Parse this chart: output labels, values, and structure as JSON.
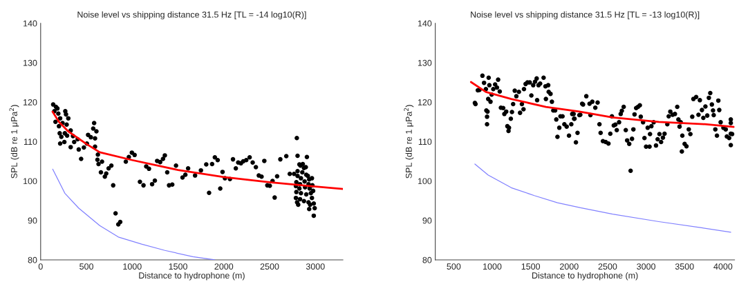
{
  "chart_data": [
    {
      "type": "scatter",
      "title": "Noise level vs shipping distance 31.5 Hz [TL = -14 log10(R)]",
      "xlabel": "Distance to hydrophone (m)",
      "ylabel": "SPL (dB re 1 μPa$^{2}$)",
      "xlim": [
        0,
        3300
      ],
      "xticks": [
        0,
        500,
        1000,
        1500,
        2000,
        2500,
        3000
      ],
      "ylim": [
        80,
        140
      ],
      "yticks": [
        80,
        90,
        100,
        110,
        120,
        130,
        140
      ],
      "grid": false,
      "legend": false,
      "series": [
        {
          "marker": "circle",
          "color": "#000000",
          "x": [
            137,
            167,
            183,
            150,
            193,
            269,
            277,
            302,
            213,
            162,
            239,
            284,
            200,
            328,
            264,
            208,
            226,
            289,
            353,
            404,
            213,
            259,
            366,
            328,
            416,
            442,
            472,
            505,
            518,
            548,
            584,
            574,
            609,
            594,
            594,
            625,
            620,
            632,
            670,
            658,
            701,
            716,
            742,
            772,
            792,
            818,
            848,
            869,
            930,
            963,
            996,
            1026,
            1084,
            1123,
            1153,
            1183,
            1217,
            1247,
            1272,
            1305,
            1336,
            1356,
            1382,
            1402,
            1437,
            1478,
            1549,
            1580,
            1610,
            1686,
            1750,
            1808,
            1839,
            1872,
            1902,
            1933,
            1961,
            1986,
            2012,
            2067,
            2100,
            2131,
            2157,
            2187,
            2212,
            2245,
            2282,
            2315,
            2350,
            2382,
            2412,
            2442,
            2475,
            2502,
            2532,
            2555,
            2582,
            2617,
            2682,
            2720,
            2767,
            2797,
            2805,
            2805,
            2805,
            2812,
            2800,
            2787,
            2792,
            2787,
            2792,
            2825,
            2837,
            2862,
            2875,
            2857,
            2842,
            2832,
            2825,
            2842,
            2832,
            2875,
            2907,
            2895,
            2900,
            2882,
            2887,
            2900,
            2917,
            2932,
            2925,
            2937,
            2925,
            2932,
            2942,
            2962,
            2967,
            2975,
            2962,
            2982,
            2992,
            2982,
            2950
          ],
          "values": [
            119.4,
            118.8,
            118.4,
            117.7,
            117.1,
            117.7,
            116.9,
            115.9,
            115.9,
            115.0,
            114.7,
            114.3,
            113.9,
            112.8,
            112.1,
            112.1,
            111.2,
            111.5,
            111.4,
            110.6,
            109.5,
            109.9,
            109.9,
            108.6,
            108.0,
            105.6,
            108.5,
            109.5,
            111.7,
            111.1,
            114.7,
            113.3,
            112.6,
            110.8,
            108.7,
            106.7,
            105.4,
            104.3,
            104.9,
            102.2,
            101.1,
            101.9,
            103.2,
            103.9,
            98.9,
            91.8,
            89.0,
            89.6,
            104.9,
            106.1,
            107.2,
            106.6,
            99.8,
            98.9,
            103.7,
            103.1,
            99.2,
            100.1,
            105.1,
            104.8,
            105.6,
            106.5,
            102.2,
            98.9,
            99.1,
            103.9,
            100.9,
            101.6,
            103.2,
            101.4,
            102.7,
            104.2,
            97.0,
            104.3,
            106.0,
            105.3,
            98.1,
            102.3,
            100.7,
            100.5,
            105.5,
            103.2,
            104.7,
            104.5,
            105.0,
            105.3,
            106.0,
            104.7,
            103.5,
            101.4,
            101.1,
            105.1,
            98.9,
            98.8,
            100.0,
            95.8,
            101.2,
            105.5,
            106.3,
            101.8,
            101.8,
            110.9,
            106.4,
            101.3,
            102.5,
            94.0,
            94.6,
            95.7,
            97.2,
            98.7,
            99.7,
            104.2,
            103.9,
            104.3,
            103.3,
            102.2,
            100.7,
            99.2,
            98.1,
            96.9,
            95.4,
            94.9,
            106.1,
            103.5,
            101.6,
            99.9,
            98.4,
            96.6,
            101.3,
            100.4,
            99.2,
            98.1,
            94.6,
            92.9,
            94.0,
            100.7,
            98.9,
            97.5,
            95.7,
            94.3,
            93.1,
            91.2,
            96.9
          ]
        },
        {
          "type": "line",
          "marker": "none",
          "color": "#ff0000",
          "x": [
            130,
            200,
            300,
            500,
            645,
            1000,
            1500,
            2000,
            2500,
            3000,
            3300
          ],
          "values": [
            117.6,
            115.0,
            112.6,
            109.4,
            107.3,
            105.3,
            102.8,
            101.0,
            99.7,
            98.6,
            98.0
          ]
        },
        {
          "type": "line",
          "marker": "none",
          "color": "#8080ff",
          "x": [
            132,
            264,
            416,
            645,
            848,
            1102,
            1356,
            1661,
            1900
          ],
          "values": [
            103.0,
            96.9,
            93.1,
            88.7,
            85.8,
            84.0,
            82.4,
            80.8,
            80.0
          ]
        }
      ]
    },
    {
      "type": "scatter",
      "title": "Noise level vs shipping distance 31.5 Hz [TL = -13 log10(R)]",
      "xlabel": "Distance to hydrophone (m)",
      "ylabel": "SPL (dB re 1 μPa$^{2}$)",
      "xlim": [
        260,
        4150
      ],
      "xticks": [
        500,
        1000,
        1500,
        2000,
        2500,
        3000,
        3500,
        4000
      ],
      "ylim": [
        80,
        140
      ],
      "yticks": [
        80,
        90,
        100,
        110,
        120,
        130,
        140
      ],
      "grid": false,
      "legend": false,
      "series": [
        {
          "marker": "circle",
          "color": "#000000",
          "x": [
            775,
            783,
            813,
            834,
            873,
            894,
            918,
            924,
            933,
            933,
            939,
            954,
            963,
            948,
            978,
            993,
            1014,
            1038,
            1062,
            1077,
            1098,
            1113,
            1143,
            1158,
            1182,
            1197,
            1212,
            1218,
            1242,
            1257,
            1272,
            1293,
            1314,
            1347,
            1362,
            1386,
            1407,
            1413,
            1434,
            1458,
            1488,
            1509,
            1533,
            1557,
            1578,
            1602,
            1584,
            1623,
            1668,
            1692,
            1728,
            1698,
            1734,
            1758,
            1776,
            1794,
            1818,
            1833,
            1848,
            1872,
            1887,
            1914,
            1938,
            1968,
            1998,
            2028,
            2064,
            2058,
            2088,
            2109,
            2133,
            2040,
            2070,
            2145,
            2169,
            2223,
            2181,
            2265,
            2301,
            2340,
            2370,
            2277,
            2394,
            2409,
            2439,
            2475,
            2511,
            2535,
            2556,
            2580,
            2601,
            2619,
            2649,
            2670,
            2685,
            2709,
            2736,
            2754,
            2781,
            2799,
            2817,
            2835,
            2850,
            2871,
            2895,
            2919,
            2931,
            2961,
            2979,
            3000,
            3021,
            3045,
            3051,
            3069,
            3099,
            3129,
            3150,
            3174,
            3195,
            3219,
            3240,
            3276,
            3294,
            3315,
            3345,
            3375,
            3405,
            3420,
            3435,
            3450,
            3471,
            3465,
            3501,
            3525,
            3555,
            3576,
            3600,
            3615,
            3651,
            3681,
            3699,
            3726,
            3744,
            3771,
            3795,
            3816,
            3834,
            3855,
            3870,
            3879,
            3900,
            3921,
            3939,
            3951,
            3969,
            4005,
            4035,
            4050,
            4080,
            4101,
            4101,
            4101,
            4101,
            4119
          ],
          "values": [
            119.8,
            119.5,
            123.0,
            123.1,
            126.7,
            124.9,
            123.3,
            117.9,
            116.3,
            114.4,
            117.6,
            126.2,
            124.3,
            120.8,
            120.1,
            121.9,
            123.3,
            124.5,
            123.7,
            125.7,
            122.7,
            118.6,
            118.5,
            117.0,
            117.6,
            113.9,
            112.7,
            113.5,
            115.8,
            117.5,
            119.5,
            122.9,
            121.5,
            122.6,
            117.3,
            119.5,
            118.2,
            123.3,
            124.6,
            125.0,
            125.0,
            121.7,
            124.3,
            125.2,
            126.0,
            124.3,
            120.5,
            124.7,
            126.2,
            124.0,
            124.3,
            120.8,
            122.6,
            122.1,
            120.1,
            117.9,
            117.9,
            115.6,
            111.2,
            113.5,
            116.4,
            116.4,
            114.4,
            113.8,
            111.5,
            114.4,
            115.8,
            117.0,
            109.8,
            112.2,
            116.7,
            117.0,
            115.8,
            116.8,
            119.6,
            121.5,
            119.4,
            119.6,
            120.1,
            118.6,
            119.9,
            116.7,
            114.4,
            112.2,
            110.1,
            109.9,
            109.5,
            112.0,
            116.4,
            114.1,
            114.3,
            112.9,
            114.9,
            117.0,
            117.8,
            118.8,
            112.9,
            110.3,
            109.4,
            102.6,
            110.7,
            113.1,
            116.9,
            118.5,
            118.8,
            119.2,
            116.3,
            114.9,
            110.9,
            108.7,
            113.5,
            108.7,
            111.9,
            113.9,
            114.9,
            109.0,
            110.6,
            111.9,
            109.9,
            111.0,
            112.0,
            114.4,
            116.4,
            117.6,
            116.8,
            117.0,
            118.8,
            115.6,
            113.8,
            114.9,
            111.5,
            107.5,
            109.4,
            108.8,
            113.1,
            111.9,
            116.3,
            120.8,
            121.3,
            116.8,
            120.5,
            118.0,
            116.0,
            118.9,
            116.6,
            121.1,
            122.3,
            119.4,
            117.9,
            116.7,
            113.1,
            111.5,
            120.4,
            118.0,
            114.9,
            113.5,
            113.1,
            111.3,
            110.9,
            115.6,
            114.7,
            112.0,
            109.1,
            111.9
          ]
        },
        {
          "type": "line",
          "marker": "none",
          "color": "#ff0000",
          "x": [
            724,
            918,
            1248,
            1698,
            2133,
            2565,
            3165,
            3765,
            4140
          ],
          "values": [
            125.1,
            122.6,
            120.8,
            118.8,
            117.6,
            116.1,
            115.0,
            114.4,
            113.7
          ]
        },
        {
          "type": "line",
          "marker": "none",
          "color": "#8080ff",
          "x": [
            775,
            948,
            1248,
            1548,
            1848,
            2148,
            2565,
            3165,
            3705,
            4100
          ],
          "values": [
            104.3,
            101.5,
            98.3,
            96.3,
            94.5,
            93.2,
            91.6,
            89.7,
            88.2,
            87.0
          ]
        }
      ]
    }
  ]
}
